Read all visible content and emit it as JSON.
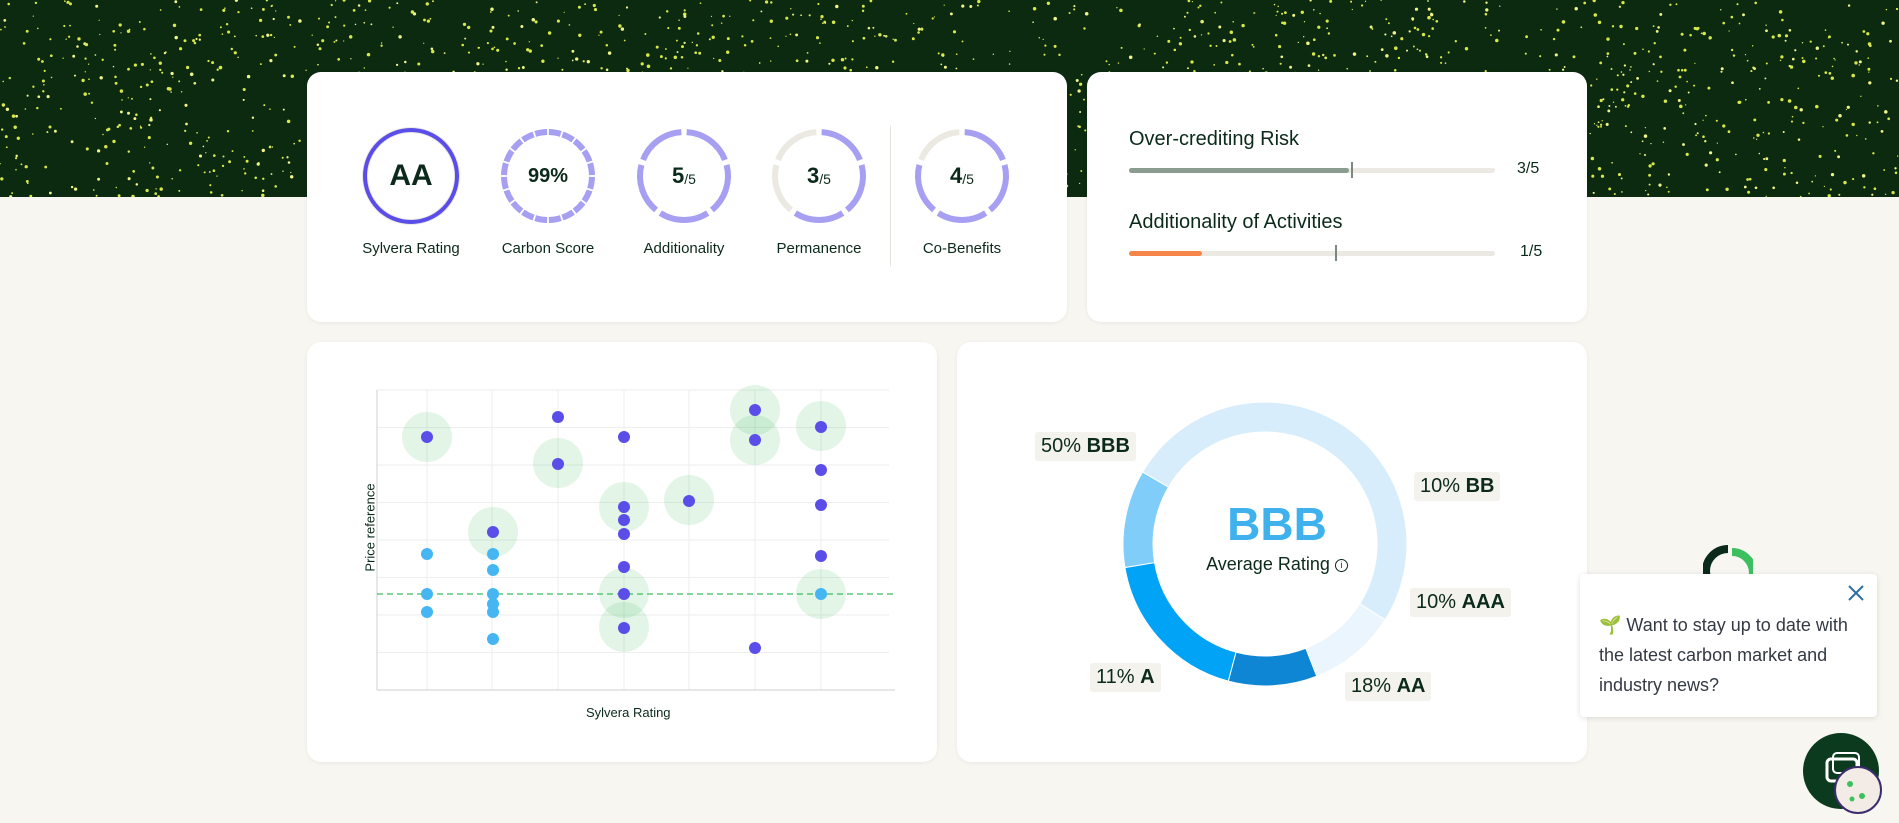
{
  "ratings": [
    {
      "value": "AA",
      "suffix": "",
      "label": "Sylvera Rating",
      "fraction": 1.0
    },
    {
      "value": "99%",
      "suffix": "",
      "label": "Carbon Score",
      "fraction": 0.99
    },
    {
      "value": "5",
      "suffix": "/5",
      "label": "Additionality",
      "fraction": 1.0
    },
    {
      "value": "3",
      "suffix": "/5",
      "label": "Permanence",
      "fraction": 0.6
    },
    {
      "value": "4",
      "suffix": "/5",
      "label": "Co-Benefits",
      "fraction": 0.8
    }
  ],
  "risks": [
    {
      "title": "Over-crediting Risk",
      "value": "3/5",
      "fill": 0.6,
      "color": "#8a9b8f"
    },
    {
      "title": "Additionality of Activities",
      "value": "1/5",
      "fill": 0.2,
      "color": "#f6854a"
    }
  ],
  "scatter": {
    "xlabel": "Sylvera Rating",
    "ylabel": "Price reference"
  },
  "donut": {
    "center_value": "BBB",
    "center_label": "Average Rating",
    "slices": [
      {
        "pct": "50%",
        "name": "BBB",
        "share": 50,
        "color": "#d8edfb"
      },
      {
        "pct": "10%",
        "name": "BB",
        "share": 10,
        "color": "#eaf5fd"
      },
      {
        "pct": "10%",
        "name": "AAA",
        "share": 10,
        "color": "#0e86d4"
      },
      {
        "pct": "18%",
        "name": "AA",
        "share": 18,
        "color": "#00a3f5"
      },
      {
        "pct": "11%",
        "name": "A",
        "share": 11,
        "color": "#7fcdf8"
      }
    ]
  },
  "popup": {
    "text": "🌱 Want to stay up to date with the latest carbon market and industry news?"
  },
  "colors": {
    "hero": "#0b2a10",
    "accent": "#5b4ee8",
    "ring": "#a7a0f2",
    "ring_track": "#ece9e3"
  }
}
